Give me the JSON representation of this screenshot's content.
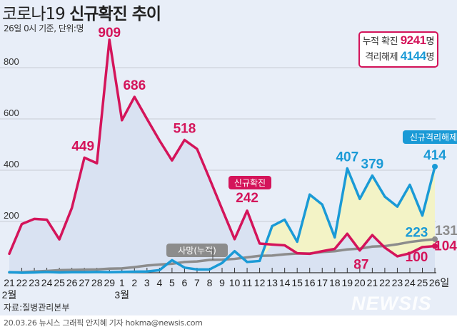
{
  "title": {
    "prefix": "코로나19",
    "main": "신규확진 추이"
  },
  "subtitle": "26일 0시 기준, 단위:명",
  "summary": {
    "confirmed_label": "누적 확진",
    "confirmed_value": "9241",
    "confirmed_unit": "명",
    "released_label": "격리해제",
    "released_value": "4144",
    "released_unit": "명"
  },
  "source": "자료:질병관리본부",
  "logo": "NEWSIS",
  "credit": "20.03.26 뉴시스 그래픽 안지혜 기자 hokma@newsis.com",
  "colors": {
    "confirmed": "#d4145a",
    "released": "#1a9ad6",
    "deaths": "#8c8c8c",
    "confirmed_fill": "#d9e2f2",
    "released_fill": "#f3f3c6",
    "background": "#e8eef8"
  },
  "chart_data": {
    "type": "line",
    "ylim": [
      0,
      950
    ],
    "yticks": [
      200,
      400,
      600,
      800
    ],
    "grid": true,
    "x": [
      "21",
      "22",
      "23",
      "24",
      "25",
      "26",
      "27",
      "28",
      "29",
      "1",
      "2",
      "3",
      "4",
      "5",
      "6",
      "7",
      "8",
      "9",
      "10",
      "11",
      "12",
      "13",
      "14",
      "15",
      "16",
      "17",
      "18",
      "19",
      "20",
      "21",
      "22",
      "23",
      "24",
      "25",
      "26일"
    ],
    "month_labels": [
      {
        "index": 0,
        "label": "2월"
      },
      {
        "index": 9,
        "label": "3월"
      }
    ],
    "series": [
      {
        "name": "신규확진",
        "key": "confirmed",
        "values": [
          74,
          190,
          210,
          207,
          130,
          253,
          449,
          427,
          909,
          595,
          686,
          600,
          516,
          438,
          518,
          483,
          367,
          248,
          131,
          242,
          114,
          110,
          107,
          76,
          74,
          84,
          93,
          152,
          87,
          147,
          98,
          64,
          76,
          100,
          104
        ]
      },
      {
        "name": "신규격리해제",
        "key": "released",
        "values": [
          2,
          0,
          1,
          3,
          1,
          2,
          2,
          3,
          2,
          3,
          4,
          5,
          10,
          49,
          20,
          13,
          13,
          38,
          84,
          42,
          46,
          182,
          207,
          121,
          305,
          266,
          138,
          407,
          288,
          379,
          297,
          258,
          343,
          223,
          414
        ]
      },
      {
        "name": "사망(누적)",
        "key": "deaths",
        "values": [
          1,
          2,
          5,
          7,
          10,
          11,
          12,
          13,
          16,
          17,
          22,
          28,
          32,
          35,
          42,
          44,
          50,
          51,
          54,
          60,
          66,
          67,
          72,
          75,
          75,
          81,
          84,
          91,
          94,
          102,
          104,
          111,
          120,
          126,
          131
        ]
      }
    ],
    "data_labels": [
      {
        "series": "confirmed",
        "index": 6,
        "text": "449"
      },
      {
        "series": "confirmed",
        "index": 8,
        "text": "909"
      },
      {
        "series": "confirmed",
        "index": 10,
        "text": "686"
      },
      {
        "series": "confirmed",
        "index": 14,
        "text": "518"
      },
      {
        "series": "confirmed",
        "index": 19,
        "text": "242"
      },
      {
        "series": "confirmed",
        "index": 28,
        "text": "87"
      },
      {
        "series": "confirmed",
        "index": 33,
        "text": "100"
      },
      {
        "series": "confirmed",
        "index": 34,
        "text": "104"
      },
      {
        "series": "released",
        "index": 27,
        "text": "407"
      },
      {
        "series": "released",
        "index": 29,
        "text": "379"
      },
      {
        "series": "released",
        "index": 33,
        "text": "223"
      },
      {
        "series": "released",
        "index": 34,
        "text": "414"
      },
      {
        "series": "deaths",
        "index": 34,
        "text": "131"
      }
    ]
  }
}
